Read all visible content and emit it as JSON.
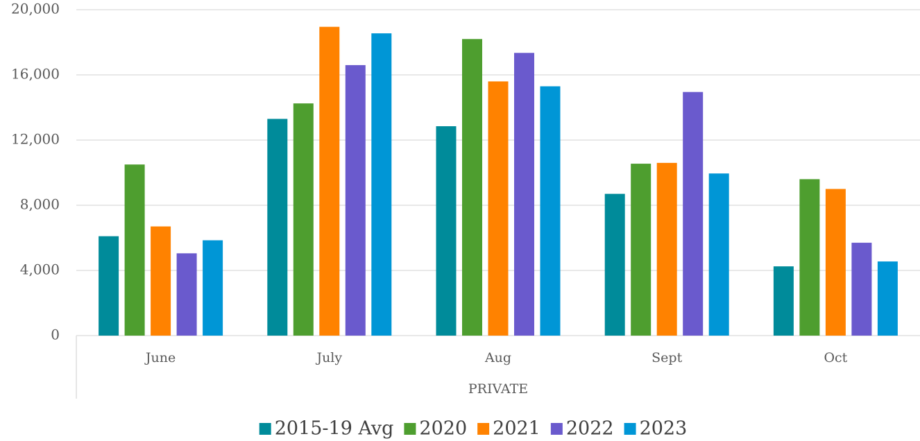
{
  "chart_data": {
    "type": "bar",
    "categories": [
      "June",
      "July",
      "Aug",
      "Sept",
      "Oct"
    ],
    "group_label": "PRIVATE",
    "series": [
      {
        "name": "2015-19 Avg",
        "color": "#008b9a",
        "values": [
          6100,
          13300,
          12850,
          8700,
          4250
        ]
      },
      {
        "name": "2020",
        "color": "#4e9e2f",
        "values": [
          10500,
          14250,
          18200,
          10550,
          9600
        ]
      },
      {
        "name": "2021",
        "color": "#ff8200",
        "values": [
          6700,
          18950,
          15600,
          10600,
          9000
        ]
      },
      {
        "name": "2022",
        "color": "#6a5acd",
        "values": [
          5050,
          16600,
          17350,
          14950,
          5700
        ]
      },
      {
        "name": "2023",
        "color": "#0096d6",
        "values": [
          5850,
          18550,
          15300,
          9950,
          4550
        ]
      }
    ],
    "ylim": [
      0,
      20000
    ],
    "yticks": [
      0,
      {
        "value": 4000,
        "label": "4,000"
      },
      {
        "value": 8000,
        "label": "8,000"
      },
      {
        "value": 12000,
        "label": "12,000"
      },
      {
        "value": 16000,
        "label": "16,000"
      },
      {
        "value": 20000,
        "label": "20,000"
      }
    ],
    "grid": true,
    "legend": "bottom"
  }
}
